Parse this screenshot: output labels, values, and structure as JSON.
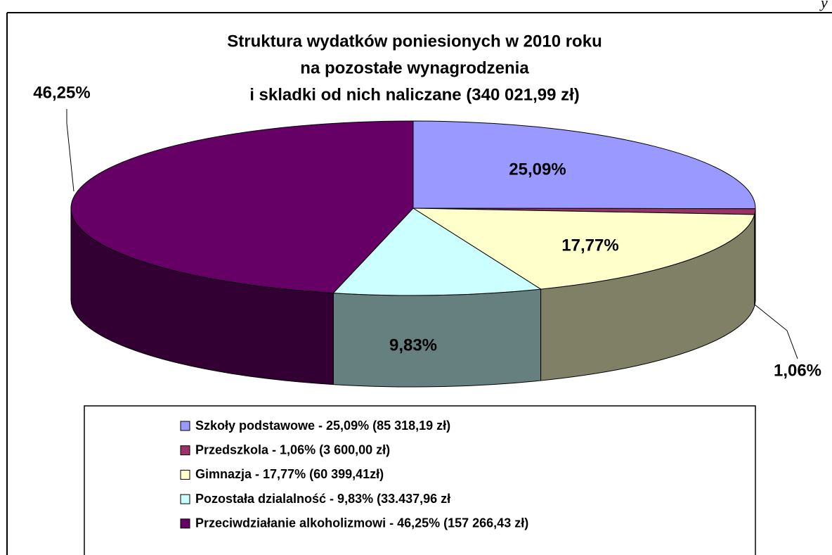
{
  "corner_text": "y",
  "chart_data": {
    "type": "pie",
    "title": [
      "Struktura wydatków poniesionych w 2010 roku",
      "na pozostałe wynagrodzenia",
      "i skladki od nich naliczane (340 021,99 zł)"
    ],
    "categories": [
      "Szkoły podstawowe - 25,09% (85 318,19 zł)",
      "Przedszkola - 1,06% (3 600,00 zł)",
      "Gimnazja - 17,77% (60 399,41zł)",
      "Pozostała dzialalność - 9,83% (33.437,96 zł",
      "Przeciwdziałanie alkoholizmowi - 46,25% (157 266,43 zł)"
    ],
    "values": [
      25.09,
      1.06,
      17.77,
      9.83,
      46.25
    ],
    "value_labels": [
      "25,09%",
      "1,06%",
      "17,77%",
      "9,83%",
      "46,25%"
    ],
    "colors": [
      "#9999ff",
      "#993366",
      "#ffffcc",
      "#ccffff",
      "#660066"
    ],
    "three_d": true,
    "legend": "bottom"
  }
}
